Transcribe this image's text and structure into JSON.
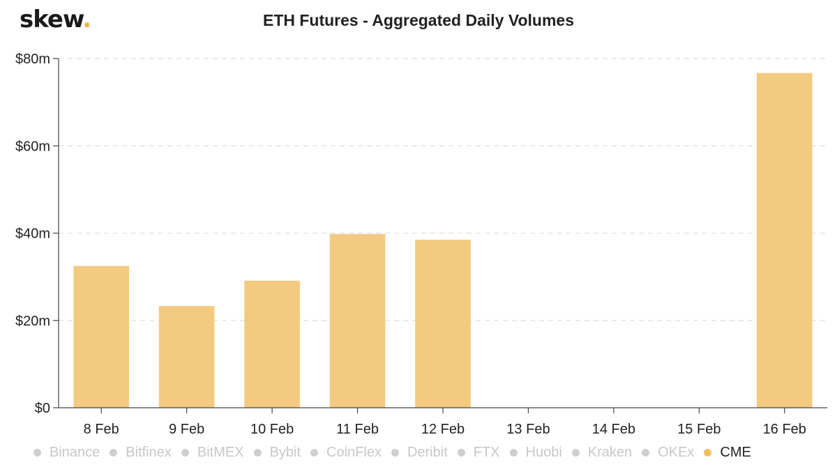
{
  "brand": {
    "logo_text": "skew",
    "logo_dot": ".",
    "accent": "#f0b234"
  },
  "chart_data": {
    "type": "bar",
    "title": "ETH Futures - Aggregated Daily Volumes",
    "xlabel": "",
    "ylabel": "",
    "categories": [
      "8 Feb",
      "9 Feb",
      "10 Feb",
      "11 Feb",
      "12 Feb",
      "13 Feb",
      "14 Feb",
      "15 Feb",
      "16 Feb"
    ],
    "series": [
      {
        "name": "CME",
        "color": "#f2cb80",
        "values": [
          32.5,
          23.3,
          29.1,
          39.8,
          38.5,
          0,
          0,
          0,
          76.7
        ]
      }
    ],
    "ylim": [
      0,
      80
    ],
    "yticks": [
      0,
      20,
      40,
      60,
      80
    ],
    "ytick_labels": [
      "$0",
      "$20m",
      "$40m",
      "$60m",
      "$80m"
    ],
    "grid": true,
    "legend_position": "bottom",
    "legend": [
      {
        "label": "Binance",
        "active": false
      },
      {
        "label": "Bitfinex",
        "active": false
      },
      {
        "label": "BitMEX",
        "active": false
      },
      {
        "label": "Bybit",
        "active": false
      },
      {
        "label": "CoinFlex",
        "active": false
      },
      {
        "label": "Deribit",
        "active": false
      },
      {
        "label": "FTX",
        "active": false
      },
      {
        "label": "Huobi",
        "active": false
      },
      {
        "label": "Kraken",
        "active": false
      },
      {
        "label": "OKEx",
        "active": false
      },
      {
        "label": "CME",
        "active": true,
        "color": "#f0c060"
      }
    ]
  }
}
